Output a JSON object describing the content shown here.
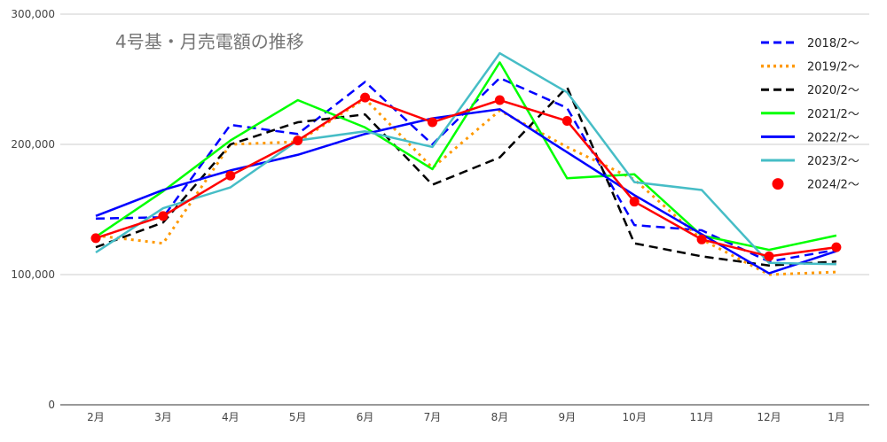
{
  "chart_data": {
    "type": "line",
    "title": "4号基・月売電額の推移",
    "xlabel": "",
    "ylabel": "",
    "categories": [
      "2月",
      "3月",
      "4月",
      "5月",
      "6月",
      "7月",
      "8月",
      "9月",
      "10月",
      "11月",
      "12月",
      "1月"
    ],
    "yticks": [
      "0",
      "100,000",
      "200,000",
      "300,000"
    ],
    "ylim": [
      0,
      300000
    ],
    "grid": true,
    "legend_position": "right",
    "series": [
      {
        "name": "2018/2〜",
        "color": "#0000ff",
        "dash": "dashed",
        "values": [
          143000,
          144000,
          215000,
          208000,
          248000,
          200000,
          251000,
          228000,
          138000,
          134000,
          110000,
          119000
        ]
      },
      {
        "name": "2019/2〜",
        "color": "#ff9900",
        "dash": "dotted",
        "values": [
          130000,
          124000,
          200000,
          202000,
          235000,
          182000,
          226000,
          198000,
          173000,
          127000,
          100000,
          102000
        ]
      },
      {
        "name": "2020/2〜",
        "color": "#000000",
        "dash": "dashed",
        "values": [
          121000,
          140000,
          200000,
          217000,
          223000,
          169000,
          190000,
          244000,
          124000,
          114000,
          107000,
          110000
        ]
      },
      {
        "name": "2021/2〜",
        "color": "#00ff00",
        "dash": "solid",
        "values": [
          129000,
          164000,
          203000,
          234000,
          213000,
          181000,
          263000,
          174000,
          177000,
          130000,
          119000,
          130000
        ]
      },
      {
        "name": "2022/2〜",
        "color": "#0000ff",
        "dash": "solid",
        "values": [
          145000,
          165000,
          180000,
          192000,
          208000,
          220000,
          227000,
          194000,
          161000,
          131000,
          101000,
          118000
        ]
      },
      {
        "name": "2023/2〜",
        "color": "#46bdc6",
        "dash": "solid",
        "values": [
          117000,
          151000,
          167000,
          203000,
          210000,
          198000,
          270000,
          240000,
          171000,
          165000,
          109000,
          108000
        ]
      },
      {
        "name": "2024/2〜",
        "color": "#ff0000",
        "dash": "solid-markers",
        "values": [
          128000,
          145000,
          176000,
          203000,
          236000,
          217000,
          234000,
          218000,
          156000,
          127000,
          114000,
          121000
        ]
      }
    ]
  }
}
